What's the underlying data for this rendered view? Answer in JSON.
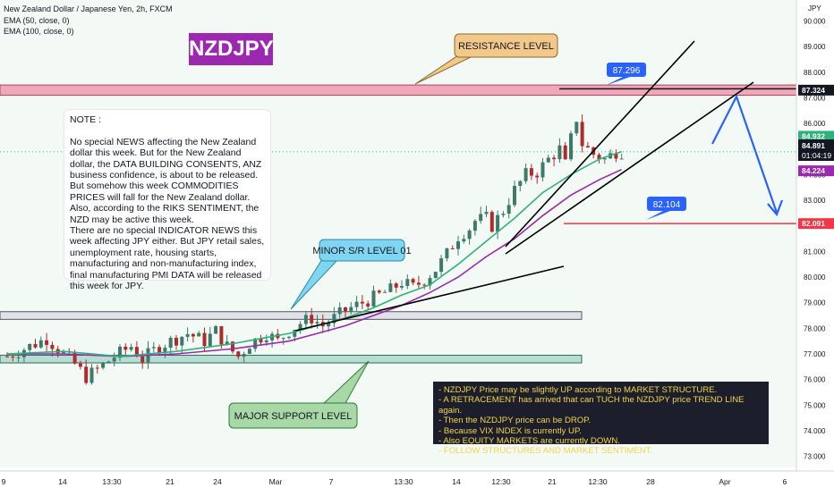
{
  "header": {
    "symbol_line": "New Zealand Dollar / Japanese Yen, 2h, FXCM",
    "ema1": "EMA (50, close, 0)",
    "ema2": "EMA (100, close, 0)"
  },
  "title_badge": "NZDJPY",
  "callouts": {
    "resistance": "RESISTANCE LEVEL",
    "minor": "MINOR S/R LEVEL 01",
    "major": "MAJOR SUPPORT LEVEL"
  },
  "note": "NOTE :\n\nNo special NEWS affecting the New Zealand dollar this week.  But for the New Zealand dollar, the DATA BUILDING CONSENTS, ANZ business confidence, is about to be released.\n But somehow this week COMMODITIES PRICES will fall for the New Zealand dollar.  Also, according to the RIKS SENTIMENT, the NZD may be active this week.\n There are no special INDICATOR NEWS this week affecting JPY either.  But JPY retail sales, unemployment rate, housing starts, manufacturing and non-manufacturing index, final manufacturing PMI DATA will be released this week for JPY.",
  "analysis": "- NZDJPY Price may be slightly UP according to MARKET STRUCTURE.\n- A RETRACEMENT has arrived that can TUCH the NZDJPY price TREND LINE again.\n- Then the NZDJPY price can be DROP.\n- Because VIX INDEX is currently UP.\n- Also EQUITY MARKETS are currently DOWN.\n- FOLLOW STRUCTURES AND MARKET SENTIMENT.",
  "colors": {
    "up": "#3d7a6a",
    "down": "#b02a2a",
    "ema50": "#2db37a",
    "ema100": "#9c27b0",
    "resistance_zone": "#f1a7b8",
    "support_zone": "#b7ddd2",
    "minor_zone": "#dfe2e8",
    "badge": "#9c27b0",
    "callout_orange": "#f3c98b",
    "callout_blue": "#80d6f0",
    "callout_green": "#a8d8a5",
    "current_price": "#26a69a",
    "projection": "#2962ff",
    "level_line": "#f23645",
    "bg_tint": "#eaf5ee"
  },
  "chart_data": {
    "type": "candlestick",
    "currency": "JPY",
    "ylim": [
      72.5,
      90.4
    ],
    "y_ticks": [
      "73.000",
      "74.000",
      "75.000",
      "76.000",
      "77.000",
      "78.000",
      "79.000",
      "80.000",
      "81.000",
      "82.000",
      "83.000",
      "84.000",
      "85.000",
      "86.000",
      "87.000",
      "88.000",
      "89.000",
      "90.000"
    ],
    "x_ticks": [
      "9",
      "14",
      "13:30",
      "21",
      "24",
      "Mar",
      "7",
      "13:30",
      "14",
      "12:30",
      "21",
      "12:30",
      "28",
      "Apr",
      "6"
    ],
    "price_labels": {
      "resistance": "87.324",
      "ema50": "84.932",
      "last": "84.891",
      "countdown": "01:04:19",
      "ema100": "84.224",
      "target": "82.091"
    },
    "annotations": {
      "high_marker": "87.296",
      "target_marker": "82.104"
    },
    "levels": {
      "resistance": 87.3,
      "target": 82.09,
      "minor_sr": 78.5,
      "major_support": 76.8
    },
    "close_path": [
      [
        0,
        76.9
      ],
      [
        4,
        77.3
      ],
      [
        7,
        77.6
      ],
      [
        10,
        77.0
      ],
      [
        12,
        76.6
      ],
      [
        14,
        76.1
      ],
      [
        16,
        76.4
      ],
      [
        19,
        76.9
      ],
      [
        22,
        77.3
      ],
      [
        24,
        76.8
      ],
      [
        27,
        77.3
      ],
      [
        30,
        77.6
      ],
      [
        32,
        77.8
      ],
      [
        35,
        77.5
      ],
      [
        37,
        77.9
      ],
      [
        39,
        77.3
      ],
      [
        41,
        76.9
      ],
      [
        43,
        77.4
      ],
      [
        46,
        77.8
      ],
      [
        48,
        77.5
      ],
      [
        50,
        77.9
      ],
      [
        52,
        78.2
      ],
      [
        54,
        78.4
      ],
      [
        56,
        78.1
      ],
      [
        58,
        78.4
      ],
      [
        60,
        78.7
      ],
      [
        62,
        78.9
      ],
      [
        64,
        79.1
      ],
      [
        66,
        79.3
      ],
      [
        68,
        79.5
      ],
      [
        70,
        79.8
      ],
      [
        72,
        79.6
      ],
      [
        74,
        79.9
      ],
      [
        76,
        80.3
      ],
      [
        78,
        80.9
      ],
      [
        80,
        81.6
      ],
      [
        82,
        81.9
      ],
      [
        83,
        82.2
      ],
      [
        85,
        82.3
      ],
      [
        86,
        82.0
      ],
      [
        88,
        82.6
      ],
      [
        90,
        83.4
      ],
      [
        92,
        84.0
      ],
      [
        94,
        84.1
      ],
      [
        96,
        84.6
      ],
      [
        98,
        85.0
      ],
      [
        99,
        84.4
      ],
      [
        100,
        85.4
      ],
      [
        101,
        86.2
      ],
      [
        102,
        85.2
      ],
      [
        104,
        84.8
      ],
      [
        106,
        84.6
      ],
      [
        108,
        84.9
      ],
      [
        109,
        84.9
      ]
    ],
    "ema50": [
      [
        0,
        77.0
      ],
      [
        10,
        77.1
      ],
      [
        20,
        76.9
      ],
      [
        30,
        77.1
      ],
      [
        40,
        77.4
      ],
      [
        45,
        77.6
      ],
      [
        50,
        77.8
      ],
      [
        55,
        78.1
      ],
      [
        60,
        78.4
      ],
      [
        65,
        78.8
      ],
      [
        70,
        79.3
      ],
      [
        75,
        79.7
      ],
      [
        80,
        80.5
      ],
      [
        85,
        81.4
      ],
      [
        90,
        82.3
      ],
      [
        95,
        83.3
      ],
      [
        100,
        84.0
      ],
      [
        105,
        84.6
      ],
      [
        109,
        84.9
      ]
    ],
    "ema100": [
      [
        0,
        77.0
      ],
      [
        10,
        77.0
      ],
      [
        20,
        76.9
      ],
      [
        30,
        77.0
      ],
      [
        40,
        77.2
      ],
      [
        50,
        77.5
      ],
      [
        55,
        77.8
      ],
      [
        60,
        78.1
      ],
      [
        65,
        78.5
      ],
      [
        70,
        78.9
      ],
      [
        75,
        79.4
      ],
      [
        80,
        80.0
      ],
      [
        85,
        80.8
      ],
      [
        90,
        81.5
      ],
      [
        95,
        82.4
      ],
      [
        100,
        83.2
      ],
      [
        105,
        83.8
      ],
      [
        109,
        84.2
      ]
    ],
    "trend_lines": {
      "upper": {
        "from": [
          76,
          80.9
        ],
        "to": [
          106,
          89.0
        ]
      },
      "middle": {
        "from": [
          76,
          80.6
        ],
        "to": [
          115,
          87.3
        ]
      },
      "lower": {
        "from": [
          44,
          78.0
        ],
        "to": [
          86,
          80.2
        ]
      }
    },
    "projection": [
      [
        109,
        84.9
      ],
      [
        113,
        86.6
      ],
      [
        119,
        82.6
      ]
    ]
  }
}
